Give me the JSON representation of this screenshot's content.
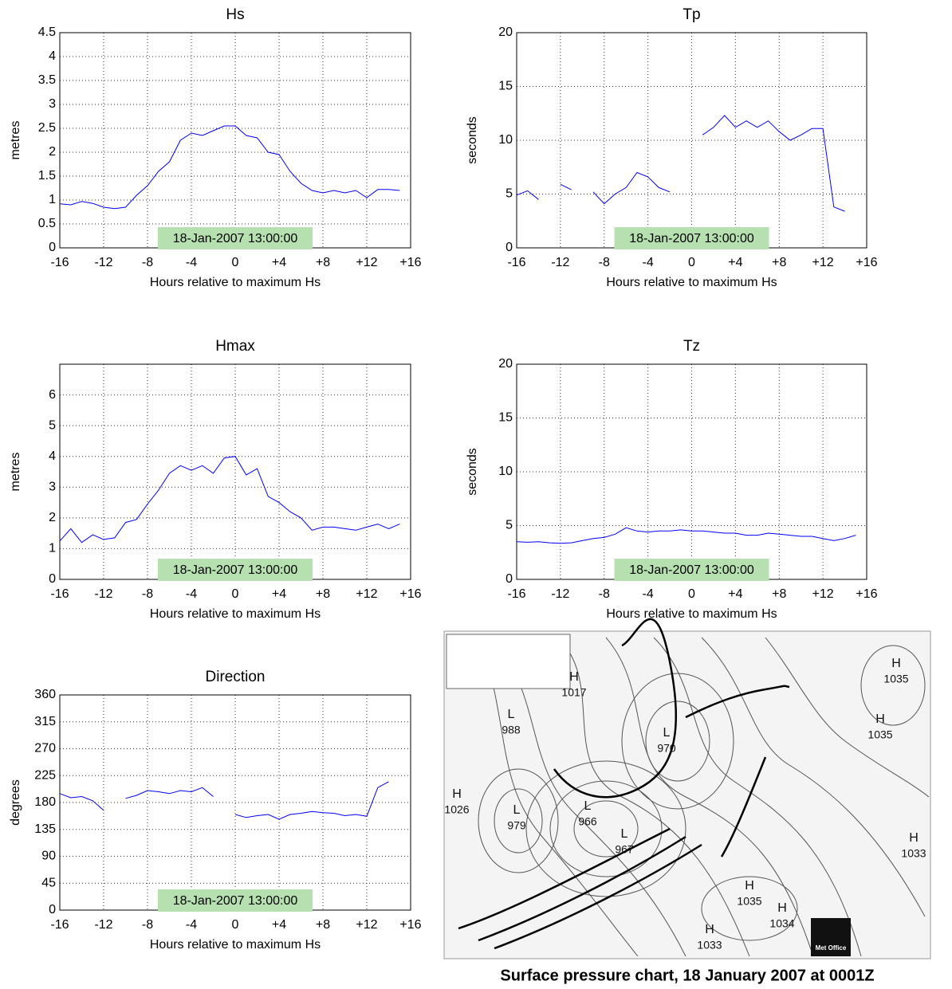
{
  "chart_data": [
    {
      "type": "line",
      "title": "Hs",
      "xlabel": "Hours relative to maximum Hs",
      "ylabel": "metres",
      "annotation": "18-Jan-2007 13:00:00",
      "x": [
        -16,
        -15,
        -14,
        -13,
        -12,
        -11,
        -10,
        -9,
        -8,
        -7,
        -6,
        -5,
        -4,
        -3,
        -2,
        -1,
        0,
        1,
        2,
        3,
        4,
        5,
        6,
        7,
        8,
        9,
        10,
        11,
        12,
        13,
        14,
        15
      ],
      "series": [
        {
          "name": "Hs",
          "color": "#0000ff",
          "values": [
            0.92,
            0.9,
            0.97,
            0.93,
            0.85,
            0.82,
            0.85,
            1.1,
            1.3,
            1.6,
            1.8,
            2.25,
            2.4,
            2.35,
            2.45,
            2.55,
            2.55,
            2.35,
            2.3,
            2.0,
            1.95,
            1.6,
            1.35,
            1.2,
            1.15,
            1.2,
            1.15,
            1.2,
            1.05,
            1.22,
            1.22,
            1.2
          ]
        }
      ],
      "xlim": [
        -16,
        16
      ],
      "xticks": [
        -16,
        -12,
        -8,
        -4,
        0,
        {
          "value": 4,
          "label": "+4"
        },
        {
          "value": 8,
          "label": "+8"
        },
        {
          "value": 12,
          "label": "+12"
        },
        {
          "value": 16,
          "label": "+16"
        }
      ],
      "ylim": [
        0,
        4.5
      ],
      "yticks": [
        0,
        0.5,
        1,
        1.5,
        2,
        2.5,
        3,
        3.5,
        4,
        4.5
      ],
      "grid": true
    },
    {
      "type": "line",
      "title": "Tp",
      "xlabel": "Hours relative to maximum Hs",
      "ylabel": "seconds",
      "annotation": "18-Jan-2007 13:00:00",
      "x": [
        -16,
        -15,
        -14,
        -13,
        -12,
        -11,
        -10,
        -9,
        -8,
        -7,
        -6,
        -5,
        -4,
        -3,
        -2,
        -1,
        0,
        1,
        2,
        3,
        4,
        5,
        6,
        7,
        8,
        9,
        10,
        11,
        12,
        13,
        14
      ],
      "series": [
        {
          "name": "Tp",
          "color": "#0000ff",
          "values": [
            4.9,
            5.3,
            4.5,
            null,
            5.9,
            5.4,
            null,
            5.2,
            4.1,
            5.0,
            5.6,
            7.0,
            6.6,
            5.6,
            5.2,
            null,
            null,
            10.5,
            11.2,
            12.3,
            11.2,
            11.8,
            11.2,
            11.8,
            10.8,
            10.0,
            10.5,
            11.1,
            11.1,
            3.8,
            3.4
          ]
        }
      ],
      "xlim": [
        -16,
        16
      ],
      "xticks": [
        -16,
        -12,
        -8,
        -4,
        0,
        {
          "value": 4,
          "label": "+4"
        },
        {
          "value": 8,
          "label": "+8"
        },
        {
          "value": 12,
          "label": "+12"
        },
        {
          "value": 16,
          "label": "+16"
        }
      ],
      "ylim": [
        0,
        20
      ],
      "yticks": [
        0,
        5,
        10,
        15,
        20
      ],
      "grid": true
    },
    {
      "type": "line",
      "title": "Hmax",
      "xlabel": "Hours relative to maximum Hs",
      "ylabel": "metres",
      "annotation": "18-Jan-2007 13:00:00",
      "x": [
        -16,
        -15,
        -14,
        -13,
        -12,
        -11,
        -10,
        -9,
        -8,
        -7,
        -6,
        -5,
        -4,
        -3,
        -2,
        -1,
        0,
        1,
        2,
        3,
        4,
        5,
        6,
        7,
        8,
        9,
        10,
        11,
        12,
        13,
        14,
        15
      ],
      "series": [
        {
          "name": "Hmax",
          "color": "#0000ff",
          "values": [
            1.25,
            1.65,
            1.2,
            1.45,
            1.3,
            1.35,
            1.85,
            1.95,
            2.45,
            2.9,
            3.45,
            3.7,
            3.55,
            3.7,
            3.45,
            3.95,
            4.0,
            3.4,
            3.6,
            2.7,
            2.5,
            2.2,
            2.0,
            1.6,
            1.7,
            1.7,
            1.65,
            1.6,
            1.7,
            1.8,
            1.65,
            1.8
          ]
        }
      ],
      "xlim": [
        -16,
        16
      ],
      "xticks": [
        -16,
        -12,
        -8,
        -4,
        0,
        {
          "value": 4,
          "label": "+4"
        },
        {
          "value": 8,
          "label": "+8"
        },
        {
          "value": 12,
          "label": "+12"
        },
        {
          "value": 16,
          "label": "+16"
        }
      ],
      "ylim": [
        0,
        7
      ],
      "yticks": [
        0,
        1,
        2,
        3,
        4,
        5,
        6
      ],
      "grid": true
    },
    {
      "type": "line",
      "title": "Tz",
      "xlabel": "Hours relative to maximum Hs",
      "ylabel": "seconds",
      "annotation": "18-Jan-2007 13:00:00",
      "x": [
        -16,
        -15,
        -14,
        -13,
        -12,
        -11,
        -10,
        -9,
        -8,
        -7,
        -6,
        -5,
        -4,
        -3,
        -2,
        -1,
        0,
        1,
        2,
        3,
        4,
        5,
        6,
        7,
        8,
        9,
        10,
        11,
        12,
        13,
        14,
        15
      ],
      "series": [
        {
          "name": "Tz",
          "color": "#0000ff",
          "values": [
            3.5,
            3.45,
            3.5,
            3.4,
            3.35,
            3.4,
            3.6,
            3.8,
            3.9,
            4.2,
            4.8,
            4.5,
            4.4,
            4.5,
            4.5,
            4.6,
            4.5,
            4.5,
            4.4,
            4.3,
            4.3,
            4.1,
            4.1,
            4.3,
            4.2,
            4.1,
            4.0,
            4.0,
            3.8,
            3.6,
            3.8,
            4.1
          ]
        }
      ],
      "xlim": [
        -16,
        16
      ],
      "xticks": [
        -16,
        -12,
        -8,
        -4,
        0,
        {
          "value": 4,
          "label": "+4"
        },
        {
          "value": 8,
          "label": "+8"
        },
        {
          "value": 12,
          "label": "+12"
        },
        {
          "value": 16,
          "label": "+16"
        }
      ],
      "ylim": [
        0,
        20
      ],
      "yticks": [
        0,
        5,
        10,
        15,
        20
      ],
      "grid": true
    },
    {
      "type": "line",
      "title": "Direction",
      "xlabel": "Hours relative to maximum Hs",
      "ylabel": "degrees",
      "annotation": "18-Jan-2007 13:00:00",
      "x": [
        -16,
        -15,
        -14,
        -13,
        -12,
        -11,
        -10,
        -9,
        -8,
        -7,
        -6,
        -5,
        -4,
        -3,
        -2,
        -1,
        0,
        1,
        2,
        3,
        4,
        5,
        6,
        7,
        8,
        9,
        10,
        11,
        12,
        13,
        14
      ],
      "series": [
        {
          "name": "Direction",
          "color": "#0000ff",
          "values": [
            195,
            188,
            190,
            183,
            167,
            null,
            187,
            192,
            200,
            198,
            195,
            200,
            198,
            205,
            190,
            null,
            160,
            155,
            158,
            160,
            152,
            160,
            162,
            165,
            163,
            162,
            158,
            160,
            157,
            205,
            215
          ]
        }
      ],
      "xlim": [
        -16,
        16
      ],
      "xticks": [
        -16,
        -12,
        -8,
        -4,
        0,
        {
          "value": 4,
          "label": "+4"
        },
        {
          "value": 8,
          "label": "+8"
        },
        {
          "value": 12,
          "label": "+12"
        },
        {
          "value": 16,
          "label": "+16"
        }
      ],
      "ylim": [
        0,
        360
      ],
      "yticks": [
        0,
        45,
        90,
        135,
        180,
        225,
        270,
        315,
        360
      ],
      "grid": true
    }
  ],
  "map": {
    "caption": "Surface pressure chart, 18 January 2007 at  0001Z",
    "logo": "Met Office",
    "labels": [
      {
        "letter": "H",
        "pressure": "1017"
      },
      {
        "letter": "L",
        "pressure": "988"
      },
      {
        "letter": "L",
        "pressure": "970"
      },
      {
        "letter": "H",
        "pressure": "1035"
      },
      {
        "letter": "H",
        "pressure": "1035"
      },
      {
        "letter": "H",
        "pressure": "1026"
      },
      {
        "letter": "L",
        "pressure": "979"
      },
      {
        "letter": "L",
        "pressure": "966"
      },
      {
        "letter": "L",
        "pressure": "967"
      },
      {
        "letter": "H",
        "pressure": "1033"
      },
      {
        "letter": "H",
        "pressure": "1035"
      },
      {
        "letter": "H",
        "pressure": "1034"
      },
      {
        "letter": "H",
        "pressure": "1033"
      }
    ]
  }
}
